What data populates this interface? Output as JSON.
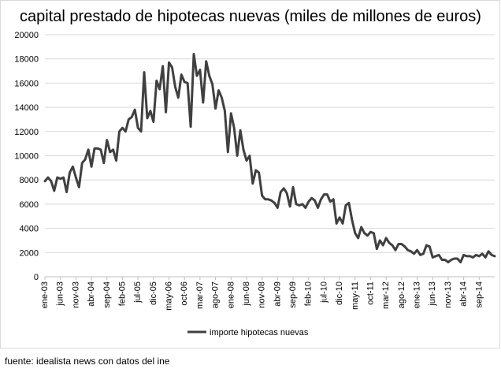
{
  "chart_data": {
    "type": "line",
    "title": "capital prestado de hipotecas nuevas (miles de millones de euros)",
    "xlabel": "",
    "ylabel": "",
    "ylim": [
      0,
      20000
    ],
    "y_ticks": [
      0,
      2000,
      4000,
      6000,
      8000,
      10000,
      12000,
      14000,
      16000,
      18000,
      20000
    ],
    "x_tick_labels": [
      "ene-03",
      "jun-03",
      "nov-03",
      "abr-04",
      "sep-04",
      "feb-05",
      "jul-05",
      "dic-05",
      "may-06",
      "oct-06",
      "mar-07",
      "ago-07",
      "ene-08",
      "jun-08",
      "nov-08",
      "abr-09",
      "sep-09",
      "feb-10",
      "jul-10",
      "dic-10",
      "may-11",
      "oct-11",
      "mar-12",
      "ago-12",
      "ene-13",
      "jun-13",
      "nov-13",
      "abr-14",
      "sep-14"
    ],
    "x_start": "ene-03",
    "x_end": "oct-14",
    "grid": {
      "horizontal": true,
      "vertical": false
    },
    "legend": {
      "position": "bottom-center"
    },
    "series": [
      {
        "name": "importe hipotecas nuevas",
        "color": "#404040",
        "values": [
          7900,
          8200,
          7900,
          7100,
          8200,
          8100,
          8200,
          7000,
          8600,
          9100,
          8200,
          7400,
          9400,
          9700,
          10500,
          9100,
          10600,
          10600,
          10500,
          9400,
          11300,
          10300,
          10500,
          9600,
          12000,
          12300,
          12000,
          13000,
          13200,
          13800,
          12300,
          12000,
          16900,
          13100,
          13700,
          12800,
          16200,
          15500,
          17400,
          13600,
          17700,
          17300,
          15700,
          14800,
          16700,
          16100,
          16000,
          12400,
          18400,
          16600,
          17100,
          14400,
          17800,
          16600,
          15900,
          13900,
          15400,
          14800,
          13700,
          10300,
          13500,
          12300,
          10000,
          12100,
          10500,
          9600,
          10000,
          7700,
          8800,
          8600,
          6700,
          6400,
          6400,
          6300,
          6100,
          5700,
          7000,
          7300,
          6900,
          5800,
          7400,
          6000,
          5900,
          6000,
          5700,
          6200,
          6500,
          6300,
          5700,
          6400,
          6800,
          6800,
          6200,
          6400,
          4400,
          4900,
          4400,
          5900,
          6100,
          4700,
          3600,
          3200,
          4100,
          3600,
          3400,
          3700,
          3600,
          2300,
          3000,
          2600,
          3200,
          2800,
          2600,
          2200,
          2700,
          2700,
          2500,
          2200,
          2100,
          1900,
          2200,
          1800,
          1900,
          2600,
          2500,
          1600,
          1700,
          1800,
          1400,
          1400,
          1200,
          1400,
          1500,
          1500,
          1200,
          1800,
          1700,
          1700,
          1600,
          1800,
          1700,
          1900,
          1600,
          2100,
          1800,
          1700
        ]
      }
    ]
  },
  "source_note": "fuente: idealista news con datos del ine"
}
